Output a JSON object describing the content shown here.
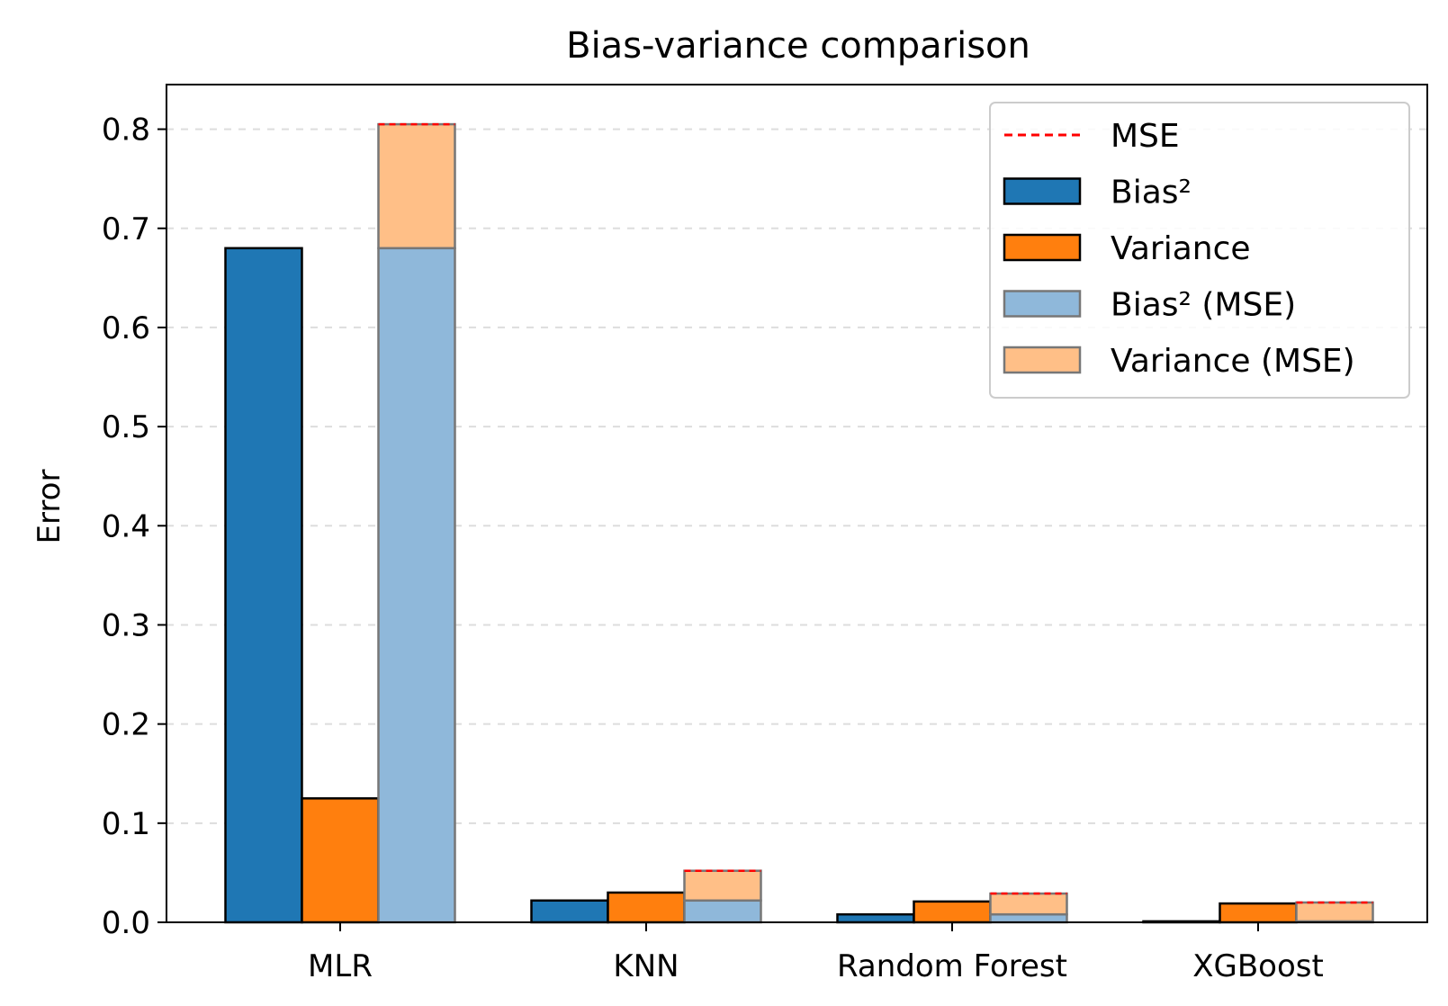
{
  "chart_data": {
    "type": "bar",
    "title": "Bias-variance comparison",
    "xlabel": "",
    "ylabel": "Error",
    "categories": [
      "MLR",
      "KNN",
      "Random Forest",
      "XGBoost"
    ],
    "series": [
      {
        "name": "Bias²",
        "values": [
          0.68,
          0.022,
          0.008,
          0.001
        ],
        "color": "#1f77b4"
      },
      {
        "name": "Variance",
        "values": [
          0.125,
          0.03,
          0.021,
          0.019
        ],
        "color": "#ff7f0e"
      }
    ],
    "mse_stack": {
      "bias_name": "Bias² (MSE)",
      "variance_name": "Variance (MSE)",
      "bias_color": "#8fb8da",
      "variance_color": "#ffbf87",
      "mse_name": "MSE",
      "mse_color": "#ff0000"
    },
    "ylim": [
      0,
      0.845
    ],
    "yticks": [
      0.0,
      0.1,
      0.2,
      0.3,
      0.4,
      0.5,
      0.6,
      0.7,
      0.8
    ],
    "ytick_labels": [
      "0.0",
      "0.1",
      "0.2",
      "0.3",
      "0.4",
      "0.5",
      "0.6",
      "0.7",
      "0.8"
    ],
    "grid": "y-dashed",
    "legend": "top-right"
  }
}
